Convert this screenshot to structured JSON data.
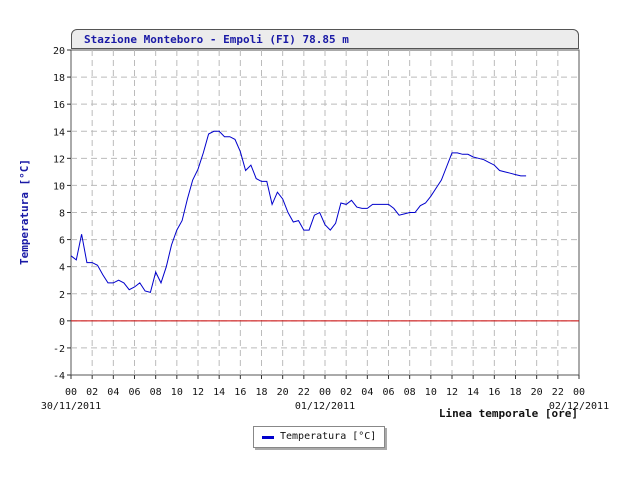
{
  "chart_data": {
    "type": "line",
    "title": "Stazione Monteboro - Empoli (FI) 78.85 m",
    "ylabel": "Temperatura [°C]",
    "xlabel": "Linea temporale [ore]",
    "ylim": [
      -4,
      20
    ],
    "yticks": [
      "-4",
      "-2",
      "0",
      "2",
      "4",
      "6",
      "8",
      "10",
      "12",
      "14",
      "16",
      "18",
      "20"
    ],
    "xticks": [
      "00",
      "02",
      "04",
      "06",
      "08",
      "10",
      "12",
      "14",
      "16",
      "18",
      "20",
      "22",
      "00",
      "02",
      "04",
      "06",
      "08",
      "10",
      "12",
      "14",
      "16",
      "18",
      "20",
      "22",
      "00"
    ],
    "date_labels": [
      "30/11/2011",
      "01/12/2011",
      "02/12/2011"
    ],
    "reference_line": {
      "y": 0,
      "color": "#cc0000"
    },
    "grid": true,
    "legend_position": "bottom-center",
    "series": [
      {
        "name": "Temperatura [°C]",
        "color": "#0000cc",
        "x": [
          0,
          0.5,
          1,
          1.5,
          2,
          2.5,
          3,
          3.5,
          4,
          4.5,
          5,
          5.5,
          6,
          6.5,
          7,
          7.5,
          8,
          8.5,
          9,
          9.5,
          10,
          10.5,
          11,
          11.5,
          12,
          12.5,
          13,
          13.5,
          14,
          14.5,
          15,
          15.5,
          16,
          16.5,
          17,
          17.5,
          18,
          18.5,
          19,
          19.5,
          20,
          20.5,
          21,
          21.5,
          22,
          22.5,
          23,
          23.5,
          24,
          24.5,
          25,
          25.5,
          26,
          26.5,
          27,
          27.5,
          28,
          28.5,
          29,
          29.5,
          30,
          30.5,
          31,
          31.5,
          32,
          32.5,
          33,
          33.5,
          34,
          34.5,
          35,
          35.5,
          36,
          36.5,
          37,
          37.5,
          38,
          38.5,
          39,
          39.5,
          40,
          40.5,
          41,
          41.5,
          42,
          42.5,
          43
        ],
        "y": [
          4.8,
          4.5,
          6.4,
          4.3,
          4.3,
          4.1,
          3.4,
          2.8,
          2.8,
          3.0,
          2.8,
          2.3,
          2.5,
          2.8,
          2.2,
          2.1,
          3.6,
          2.8,
          4.0,
          5.6,
          6.7,
          7.4,
          9.0,
          10.4,
          11.2,
          12.4,
          13.8,
          14.0,
          14.0,
          13.6,
          13.6,
          13.4,
          12.5,
          11.1,
          11.5,
          10.5,
          10.3,
          10.3,
          8.6,
          9.5,
          9.0,
          8.0,
          7.3,
          7.4,
          6.7,
          6.7,
          7.8,
          8.0,
          7.1,
          6.7,
          7.2,
          8.7,
          8.6,
          8.9,
          8.4,
          8.3,
          8.3,
          8.6,
          8.6,
          8.6,
          8.6,
          8.3,
          7.8,
          7.9,
          8.0,
          8.0,
          8.5,
          8.7,
          9.2,
          9.8,
          10.4,
          11.4,
          12.4,
          12.4,
          12.3,
          12.3,
          12.1,
          12.0,
          11.9,
          11.7,
          11.5,
          11.1,
          11.0,
          10.9,
          10.8,
          10.7,
          10.7
        ]
      }
    ]
  }
}
